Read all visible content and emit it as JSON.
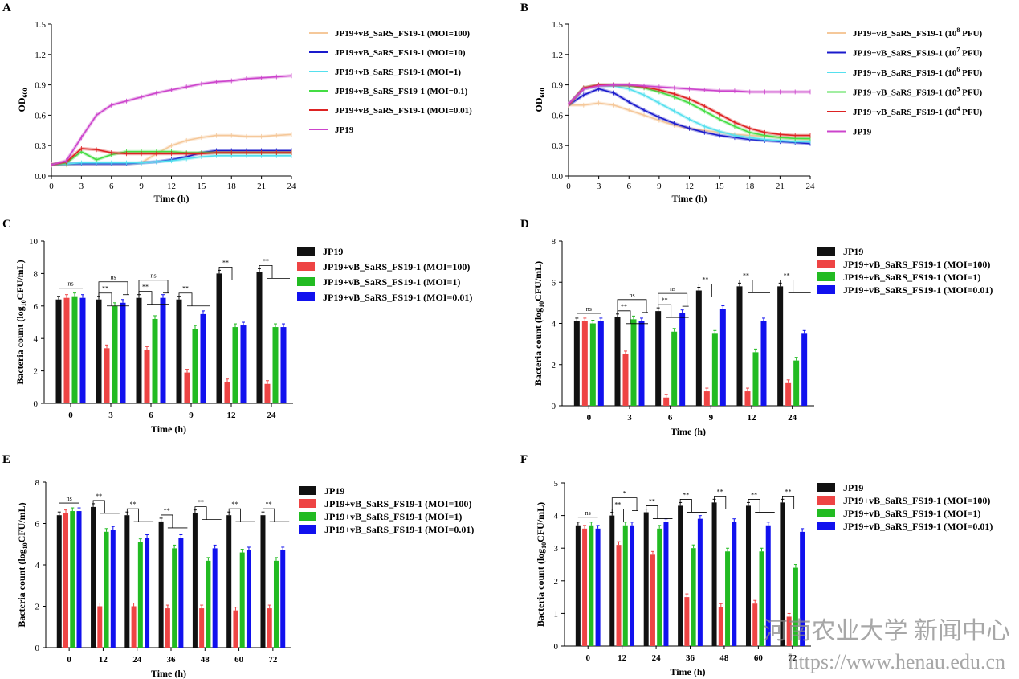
{
  "watermark": {
    "text": "河南农业大学 新闻中心",
    "url": "https://www.henau.edu.cn"
  },
  "series_colors": {
    "JP19": "#cc44cc",
    "MOI=100": "#f5c89a",
    "MOI=10": "#1a1acc",
    "MOI=1": "#55e0ee",
    "MOI=0.1": "#44dd44",
    "MOI=0.01": "#dd2222",
    "bar_JP19": "#111111",
    "bar_MOI100": "#ee4444",
    "bar_MOI1": "#22bb22",
    "bar_MOI001": "#1111ee"
  },
  "chart_data": [
    {
      "panel": "A",
      "type": "line",
      "xlabel": "Time (h)",
      "ylabel": "OD600",
      "xlim": [
        0,
        24
      ],
      "ylim": [
        0,
        1.5
      ],
      "xticks": [
        "0",
        "3",
        "6",
        "9",
        "12",
        "15",
        "18",
        "21",
        "24"
      ],
      "yticks": [
        "0.0",
        "0.3",
        "0.6",
        "0.9",
        "1.2",
        "1.5"
      ],
      "legend": [
        "JP19+vB_SaRS_FS19-1 (MOI=100)",
        "JP19+vB_SaRS_FS19-1 (MOI=10)",
        "JP19+vB_SaRS_FS19-1 (MOI=1)",
        "JP19+vB_SaRS_FS19-1 (MOI=0.1)",
        "JP19+vB_SaRS_FS19-1 (MOI=0.01)",
        "JP19"
      ],
      "series": [
        {
          "name": "JP19+vB_SaRS_FS19-1 (MOI=100)",
          "color": "#f5c89a",
          "x": [
            0,
            1.5,
            3,
            4.5,
            6,
            7.5,
            9,
            10.5,
            12,
            13.5,
            15,
            16.5,
            18,
            19.5,
            21,
            22.5,
            24
          ],
          "y": [
            0.11,
            0.11,
            0.12,
            0.12,
            0.12,
            0.12,
            0.13,
            0.22,
            0.3,
            0.35,
            0.38,
            0.4,
            0.4,
            0.39,
            0.39,
            0.4,
            0.41
          ]
        },
        {
          "name": "JP19+vB_SaRS_FS19-1 (MOI=10)",
          "color": "#1a1acc",
          "x": [
            0,
            1.5,
            3,
            4.5,
            6,
            7.5,
            9,
            10.5,
            12,
            13.5,
            15,
            16.5,
            18,
            19.5,
            21,
            22.5,
            24
          ],
          "y": [
            0.11,
            0.12,
            0.12,
            0.12,
            0.12,
            0.12,
            0.13,
            0.14,
            0.16,
            0.19,
            0.23,
            0.25,
            0.25,
            0.25,
            0.25,
            0.25,
            0.25
          ]
        },
        {
          "name": "JP19+vB_SaRS_FS19-1 (MOI=1)",
          "color": "#55e0ee",
          "x": [
            0,
            1.5,
            3,
            4.5,
            6,
            7.5,
            9,
            10.5,
            12,
            13.5,
            15,
            16.5,
            18,
            19.5,
            21,
            22.5,
            24
          ],
          "y": [
            0.11,
            0.12,
            0.13,
            0.13,
            0.13,
            0.13,
            0.13,
            0.14,
            0.15,
            0.17,
            0.19,
            0.2,
            0.2,
            0.2,
            0.2,
            0.2,
            0.2
          ]
        },
        {
          "name": "JP19+vB_SaRS_FS19-1 (MOI=0.1)",
          "color": "#44dd44",
          "x": [
            0,
            1.5,
            3,
            4.5,
            6,
            7.5,
            9,
            10.5,
            12,
            13.5,
            15,
            16.5,
            18,
            19.5,
            21,
            22.5,
            24
          ],
          "y": [
            0.11,
            0.13,
            0.24,
            0.16,
            0.21,
            0.24,
            0.24,
            0.24,
            0.24,
            0.23,
            0.23,
            0.23,
            0.23,
            0.23,
            0.23,
            0.23,
            0.23
          ]
        },
        {
          "name": "JP19+vB_SaRS_FS19-1 (MOI=0.01)",
          "color": "#dd2222",
          "x": [
            0,
            1.5,
            3,
            4.5,
            6,
            7.5,
            9,
            10.5,
            12,
            13.5,
            15,
            16.5,
            18,
            19.5,
            21,
            22.5,
            24
          ],
          "y": [
            0.11,
            0.14,
            0.27,
            0.26,
            0.23,
            0.22,
            0.22,
            0.22,
            0.22,
            0.22,
            0.22,
            0.23,
            0.23,
            0.23,
            0.23,
            0.23,
            0.23
          ]
        },
        {
          "name": "JP19",
          "color": "#cc44cc",
          "x": [
            0,
            1.5,
            3,
            4.5,
            6,
            7.5,
            9,
            10.5,
            12,
            13.5,
            15,
            16.5,
            18,
            19.5,
            21,
            22.5,
            24
          ],
          "y": [
            0.11,
            0.15,
            0.38,
            0.6,
            0.7,
            0.74,
            0.78,
            0.82,
            0.85,
            0.88,
            0.91,
            0.93,
            0.94,
            0.96,
            0.97,
            0.98,
            0.99
          ]
        }
      ]
    },
    {
      "panel": "B",
      "type": "line",
      "xlabel": "Time (h)",
      "ylabel": "OD600",
      "xlim": [
        0,
        24
      ],
      "ylim": [
        0,
        1.5
      ],
      "xticks": [
        "0",
        "3",
        "6",
        "9",
        "12",
        "15",
        "18",
        "21",
        "24"
      ],
      "yticks": [
        "0.0",
        "0.3",
        "0.6",
        "0.9",
        "1.2",
        "1.5"
      ],
      "legend": [
        {
          "pre": "JP19+vB_SaRS_FS19-1 (10",
          "sup": "8",
          "post": " PFU)"
        },
        {
          "pre": "JP19+vB_SaRS_FS19-1 (10",
          "sup": "7",
          "post": " PFU)"
        },
        {
          "pre": "JP19+vB_SaRS_FS19-1 (10",
          "sup": "6",
          "post": " PFU)"
        },
        {
          "pre": "JP19+vB_SaRS_FS19-1 (10",
          "sup": "5",
          "post": " PFU)"
        },
        {
          "pre": "JP19+vB_SaRS_FS19-1 (10",
          "sup": "4",
          "post": " PFU)"
        },
        {
          "pre": "JP19",
          "sup": "",
          "post": ""
        }
      ],
      "series": [
        {
          "name": "JP19+vB_SaRS_FS19-1 (10^8 PFU)",
          "color": "#f5c89a",
          "x": [
            0,
            1.5,
            3,
            4.5,
            6,
            7.5,
            9,
            10.5,
            12,
            13.5,
            15,
            16.5,
            18,
            19.5,
            21,
            22.5,
            24
          ],
          "y": [
            0.7,
            0.7,
            0.72,
            0.7,
            0.65,
            0.6,
            0.55,
            0.5,
            0.47,
            0.45,
            0.43,
            0.41,
            0.4,
            0.39,
            0.38,
            0.37,
            0.36
          ]
        },
        {
          "name": "JP19+vB_SaRS_FS19-1 (10^7 PFU)",
          "color": "#1a1acc",
          "x": [
            0,
            1.5,
            3,
            4.5,
            6,
            7.5,
            9,
            10.5,
            12,
            13.5,
            15,
            16.5,
            18,
            19.5,
            21,
            22.5,
            24
          ],
          "y": [
            0.7,
            0.8,
            0.86,
            0.82,
            0.73,
            0.65,
            0.58,
            0.52,
            0.47,
            0.43,
            0.4,
            0.38,
            0.36,
            0.35,
            0.34,
            0.33,
            0.32
          ]
        },
        {
          "name": "JP19+vB_SaRS_FS19-1 (10^6 PFU)",
          "color": "#55e0ee",
          "x": [
            0,
            1.5,
            3,
            4.5,
            6,
            7.5,
            9,
            10.5,
            12,
            13.5,
            15,
            16.5,
            18,
            19.5,
            21,
            22.5,
            24
          ],
          "y": [
            0.7,
            0.86,
            0.89,
            0.89,
            0.86,
            0.8,
            0.72,
            0.64,
            0.56,
            0.49,
            0.44,
            0.4,
            0.38,
            0.36,
            0.35,
            0.34,
            0.34
          ]
        },
        {
          "name": "JP19+vB_SaRS_FS19-1 (10^5 PFU)",
          "color": "#44dd44",
          "x": [
            0,
            1.5,
            3,
            4.5,
            6,
            7.5,
            9,
            10.5,
            12,
            13.5,
            15,
            16.5,
            18,
            19.5,
            21,
            22.5,
            24
          ],
          "y": [
            0.7,
            0.87,
            0.9,
            0.9,
            0.89,
            0.87,
            0.83,
            0.78,
            0.72,
            0.64,
            0.56,
            0.49,
            0.43,
            0.4,
            0.38,
            0.37,
            0.37
          ]
        },
        {
          "name": "JP19+vB_SaRS_FS19-1 (10^4 PFU)",
          "color": "#dd2222",
          "x": [
            0,
            1.5,
            3,
            4.5,
            6,
            7.5,
            9,
            10.5,
            12,
            13.5,
            15,
            16.5,
            18,
            19.5,
            21,
            22.5,
            24
          ],
          "y": [
            0.7,
            0.87,
            0.9,
            0.9,
            0.9,
            0.88,
            0.85,
            0.81,
            0.76,
            0.69,
            0.61,
            0.53,
            0.47,
            0.43,
            0.41,
            0.4,
            0.4
          ]
        },
        {
          "name": "JP19",
          "color": "#cc44cc",
          "x": [
            0,
            1.5,
            3,
            4.5,
            6,
            7.5,
            9,
            10.5,
            12,
            13.5,
            15,
            16.5,
            18,
            19.5,
            21,
            22.5,
            24
          ],
          "y": [
            0.71,
            0.86,
            0.89,
            0.9,
            0.9,
            0.89,
            0.88,
            0.87,
            0.86,
            0.85,
            0.84,
            0.84,
            0.83,
            0.83,
            0.83,
            0.83,
            0.83
          ]
        }
      ]
    },
    {
      "panel": "C",
      "type": "bar",
      "xlabel": "Time (h)",
      "ylabel": "Bacteria count  (log10CFU/mL)",
      "ylim": [
        0,
        10
      ],
      "yticks": [
        "0",
        "2",
        "4",
        "6",
        "8",
        "10"
      ],
      "categories": [
        "0",
        "3",
        "6",
        "9",
        "12",
        "24"
      ],
      "legend": [
        "JP19",
        "JP19+vB_SaRS_FS19-1 (MOI=100)",
        "JP19+vB_SaRS_FS19-1 (MOI=1)",
        "JP19+vB_SaRS_FS19-1 (MOI=0.01)"
      ],
      "series": [
        {
          "name": "JP19",
          "values": [
            6.4,
            6.4,
            6.5,
            6.4,
            8.0,
            8.1
          ]
        },
        {
          "name": "JP19+vB_SaRS_FS19-1 (MOI=100)",
          "values": [
            6.5,
            3.4,
            3.3,
            1.9,
            1.3,
            1.2
          ]
        },
        {
          "name": "JP19+vB_SaRS_FS19-1 (MOI=1)",
          "values": [
            6.6,
            6.0,
            5.2,
            4.6,
            4.7,
            4.7
          ]
        },
        {
          "name": "JP19+vB_SaRS_FS19-1 (MOI=0.01)",
          "values": [
            6.5,
            6.2,
            6.5,
            5.5,
            4.8,
            4.7
          ]
        }
      ],
      "significance": [
        {
          "category": "0",
          "label": "ns"
        },
        {
          "category": "3",
          "label": "**"
        },
        {
          "category": "3",
          "label": "ns"
        },
        {
          "category": "6",
          "label": "**"
        },
        {
          "category": "6",
          "label": "ns"
        },
        {
          "category": "9",
          "label": "**"
        },
        {
          "category": "12",
          "label": "**"
        },
        {
          "category": "24",
          "label": "**"
        }
      ]
    },
    {
      "panel": "D",
      "type": "bar",
      "xlabel": "Time (h)",
      "ylabel": "Bacteria count  (log10CFU/mL)",
      "ylim": [
        0,
        8
      ],
      "yticks": [
        "0",
        "2",
        "4",
        "6",
        "8"
      ],
      "categories": [
        "0",
        "3",
        "6",
        "9",
        "12",
        "24"
      ],
      "legend": [
        "JP19",
        "JP19+vB_SaRS_FS19-1 (MOI=100)",
        "JP19+vB_SaRS_FS19-1 (MOI=1)",
        "JP19+vB_SaRS_FS19-1 (MOI=0.01)"
      ],
      "series": [
        {
          "name": "JP19",
          "values": [
            4.1,
            4.3,
            4.6,
            5.6,
            5.8,
            5.8
          ]
        },
        {
          "name": "JP19+vB_SaRS_FS19-1 (MOI=100)",
          "values": [
            4.1,
            2.5,
            0.4,
            0.7,
            0.7,
            1.1
          ]
        },
        {
          "name": "JP19+vB_SaRS_FS19-1 (MOI=1)",
          "values": [
            4.0,
            4.2,
            3.6,
            3.5,
            2.6,
            2.2
          ]
        },
        {
          "name": "JP19+vB_SaRS_FS19-1 (MOI=0.01)",
          "values": [
            4.1,
            4.1,
            4.5,
            4.7,
            4.1,
            3.5
          ]
        }
      ],
      "significance": [
        {
          "category": "0",
          "label": "ns"
        },
        {
          "category": "3",
          "label": "**"
        },
        {
          "category": "3",
          "label": "ns"
        },
        {
          "category": "6",
          "label": "**"
        },
        {
          "category": "6",
          "label": "ns"
        },
        {
          "category": "9",
          "label": "**"
        },
        {
          "category": "12",
          "label": "**"
        },
        {
          "category": "24",
          "label": "**"
        }
      ]
    },
    {
      "panel": "E",
      "type": "bar",
      "xlabel": "Time (h)",
      "ylabel": "Bacteria count  (log10CFU/mL)",
      "ylim": [
        0,
        8
      ],
      "yticks": [
        "0",
        "2",
        "4",
        "6",
        "8"
      ],
      "categories": [
        "0",
        "12",
        "24",
        "36",
        "48",
        "60",
        "72"
      ],
      "legend": [
        "JP19",
        "JP19+vB_SaRS_FS19-1 (MOI=100)",
        "JP19+vB_SaRS_FS19-1 (MOI=1)",
        "JP19+vB_SaRS_FS19-1 (MOI=0.01)"
      ],
      "series": [
        {
          "name": "JP19",
          "values": [
            6.4,
            6.8,
            6.4,
            6.1,
            6.5,
            6.4,
            6.4
          ]
        },
        {
          "name": "JP19+vB_SaRS_FS19-1 (MOI=100)",
          "values": [
            6.5,
            2.0,
            2.0,
            1.9,
            1.9,
            1.8,
            1.9
          ]
        },
        {
          "name": "JP19+vB_SaRS_FS19-1 (MOI=1)",
          "values": [
            6.6,
            5.6,
            5.1,
            4.8,
            4.2,
            4.6,
            4.2
          ]
        },
        {
          "name": "JP19+vB_SaRS_FS19-1 (MOI=0.01)",
          "values": [
            6.6,
            5.7,
            5.3,
            5.3,
            4.8,
            4.7,
            4.7
          ]
        }
      ],
      "significance": [
        {
          "category": "0",
          "label": "ns"
        },
        {
          "category": "12",
          "label": "**"
        },
        {
          "category": "24",
          "label": "**"
        },
        {
          "category": "36",
          "label": "**"
        },
        {
          "category": "48",
          "label": "**"
        },
        {
          "category": "60",
          "label": "**"
        },
        {
          "category": "72",
          "label": "**"
        }
      ]
    },
    {
      "panel": "F",
      "type": "bar",
      "xlabel": "Time (h)",
      "ylabel": "Bacteria count  (log10CFU/mL)",
      "ylim": [
        0,
        5
      ],
      "yticks": [
        "0",
        "1",
        "2",
        "3",
        "4",
        "5"
      ],
      "categories": [
        "0",
        "12",
        "24",
        "36",
        "48",
        "60",
        "72"
      ],
      "legend": [
        "JP19",
        "JP19+vB_SaRS_FS19-1 (MOI=100)",
        "JP19+vB_SaRS_FS19-1 (MOI=1)",
        "JP19+vB_SaRS_FS19-1 (MOI=0.01)"
      ],
      "series": [
        {
          "name": "JP19",
          "values": [
            3.7,
            4.0,
            4.1,
            4.3,
            4.4,
            4.3,
            4.4
          ]
        },
        {
          "name": "JP19+vB_SaRS_FS19-1 (MOI=100)",
          "values": [
            3.6,
            3.1,
            2.8,
            1.5,
            1.2,
            1.3,
            0.9
          ]
        },
        {
          "name": "JP19+vB_SaRS_FS19-1 (MOI=1)",
          "values": [
            3.7,
            3.7,
            3.6,
            3.0,
            2.9,
            2.9,
            2.4
          ]
        },
        {
          "name": "JP19+vB_SaRS_FS19-1 (MOI=0.01)",
          "values": [
            3.6,
            3.7,
            3.8,
            3.9,
            3.8,
            3.7,
            3.5
          ]
        }
      ],
      "significance": [
        {
          "category": "0",
          "label": "ns"
        },
        {
          "category": "12",
          "label": "**"
        },
        {
          "category": "12",
          "label": "*"
        },
        {
          "category": "24",
          "label": "**"
        },
        {
          "category": "36",
          "label": "**"
        },
        {
          "category": "48",
          "label": "**"
        },
        {
          "category": "60",
          "label": "**"
        },
        {
          "category": "72",
          "label": "**"
        }
      ]
    }
  ]
}
